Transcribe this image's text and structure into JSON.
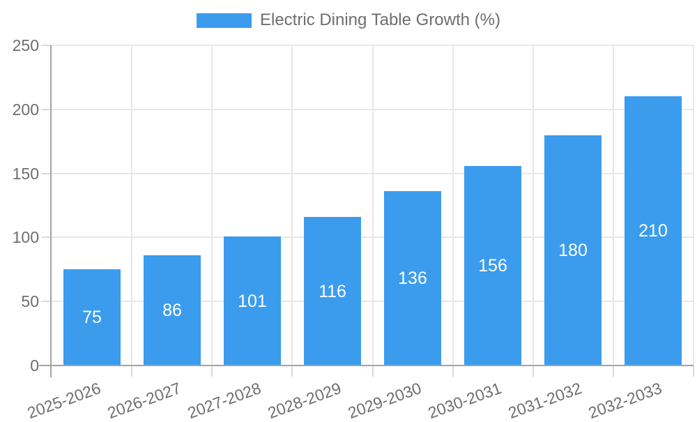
{
  "legend": {
    "position": "top",
    "items": [
      {
        "label": "Electric Dining Table Growth (%)",
        "swatch_color": "#3b9cee"
      }
    ]
  },
  "chart_data": {
    "type": "bar",
    "title": "Electric Dining Table Growth (%)",
    "categories": [
      "2025-2026",
      "2026-2027",
      "2027-2028",
      "2028-2029",
      "2029-2030",
      "2030-2031",
      "2031-2032",
      "2032-2033"
    ],
    "values": [
      75,
      86,
      101,
      116,
      136,
      156,
      180,
      210
    ],
    "xlabel": "",
    "ylabel": "",
    "ylim": [
      0,
      250
    ],
    "yticks": [
      0,
      50,
      100,
      150,
      200,
      250
    ],
    "grid": true,
    "legend_position": "top",
    "value_labels": "centered-inside-bars",
    "x_label_rotation_deg": -20,
    "colors": {
      "bar": "#3b9cee",
      "value_label_text": "#ffffff",
      "axis_text": "#6e6e6e",
      "grid_line": "#e8e8e8",
      "axis_line": "#a3a3a3",
      "tick_mark": "#d9d9d9",
      "background": "#ffffff"
    }
  }
}
